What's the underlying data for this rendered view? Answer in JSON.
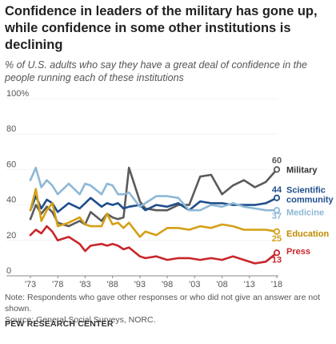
{
  "header": {
    "title": "Confidence in leaders of the military has gone up, while confidence in some other institutions is declining",
    "subtitle": "% of U.S. adults who say they have a great deal of confidence in the people running each of these institutions"
  },
  "footer": {
    "note": "Note: Respondents who gave other responses or who did not give an answer are not shown.",
    "source": "Source: General Social Surveys, NORC.",
    "brand": "PEW RESEARCH CENTER"
  },
  "chart_data": {
    "type": "line",
    "x_range": [
      1973,
      2018
    ],
    "ylim": [
      0,
      100
    ],
    "y_ticks": [
      {
        "value": 0,
        "label": "0"
      },
      {
        "value": 20,
        "label": "20"
      },
      {
        "value": 40,
        "label": "40"
      },
      {
        "value": 60,
        "label": "60"
      },
      {
        "value": 80,
        "label": "80"
      },
      {
        "value": 100,
        "label": "100%"
      }
    ],
    "x_ticks": [
      {
        "value": 1973,
        "label": "'73"
      },
      {
        "value": 1978,
        "label": "'78"
      },
      {
        "value": 1983,
        "label": "'83"
      },
      {
        "value": 1988,
        "label": "'88"
      },
      {
        "value": 1993,
        "label": "'93"
      },
      {
        "value": 1998,
        "label": "'98"
      },
      {
        "value": 2003,
        "label": "'03"
      },
      {
        "value": 2008,
        "label": "'08"
      },
      {
        "value": 2013,
        "label": "'13"
      },
      {
        "value": 2018,
        "label": "'18"
      }
    ],
    "grid": "horizontal",
    "series": [
      {
        "name": "Military",
        "color": "#5b5b5b",
        "end_label": "60",
        "x": [
          1973,
          1974,
          1975,
          1976,
          1977,
          1978,
          1980,
          1982,
          1983,
          1984,
          1986,
          1987,
          1988,
          1989,
          1990,
          1991,
          1993,
          1994,
          1996,
          1998,
          2000,
          2002,
          2004,
          2006,
          2008,
          2010,
          2012,
          2014,
          2016,
          2018
        ],
        "y": [
          32,
          40,
          35,
          39,
          36,
          30,
          28,
          31,
          29,
          36,
          31,
          35,
          33,
          32,
          33,
          61,
          42,
          38,
          37,
          37,
          40,
          40,
          56,
          57,
          46,
          51,
          54,
          50,
          53,
          60
        ]
      },
      {
        "name": "Scientific community",
        "color": "#1f4e8c",
        "end_label": "44",
        "x": [
          1973,
          1974,
          1975,
          1976,
          1977,
          1978,
          1980,
          1982,
          1983,
          1984,
          1986,
          1987,
          1988,
          1989,
          1990,
          1991,
          1993,
          1994,
          1996,
          1998,
          2000,
          2002,
          2004,
          2006,
          2008,
          2010,
          2012,
          2014,
          2016,
          2018
        ],
        "y": [
          37,
          45,
          38,
          43,
          41,
          36,
          41,
          38,
          41,
          44,
          39,
          41,
          40,
          41,
          38,
          39,
          40,
          37,
          40,
          39,
          41,
          37,
          42,
          41,
          41,
          40,
          40,
          40,
          41,
          44
        ]
      },
      {
        "name": "Medicine",
        "color": "#8eb8d6",
        "end_label": "37",
        "x": [
          1973,
          1974,
          1975,
          1976,
          1977,
          1978,
          1980,
          1982,
          1983,
          1984,
          1986,
          1987,
          1988,
          1989,
          1990,
          1991,
          1993,
          1994,
          1996,
          1998,
          2000,
          2002,
          2004,
          2006,
          2008,
          2010,
          2012,
          2014,
          2016,
          2018
        ],
        "y": [
          54,
          61,
          50,
          54,
          51,
          46,
          52,
          46,
          52,
          51,
          46,
          52,
          51,
          46,
          46,
          47,
          39,
          41,
          45,
          45,
          44,
          37,
          37,
          40,
          39,
          41,
          39,
          38,
          37,
          37
        ]
      },
      {
        "name": "Education",
        "color": "#d4a017",
        "end_label": "25",
        "x": [
          1973,
          1974,
          1975,
          1976,
          1977,
          1978,
          1980,
          1982,
          1983,
          1984,
          1986,
          1987,
          1988,
          1989,
          1990,
          1991,
          1993,
          1994,
          1996,
          1998,
          2000,
          2002,
          2004,
          2006,
          2008,
          2010,
          2012,
          2014,
          2016,
          2018
        ],
        "y": [
          37,
          49,
          31,
          37,
          41,
          28,
          30,
          33,
          29,
          28,
          28,
          35,
          29,
          30,
          27,
          30,
          22,
          25,
          23,
          27,
          27,
          26,
          28,
          27,
          29,
          28,
          26,
          26,
          26,
          25
        ]
      },
      {
        "name": "Press",
        "color": "#c9262c",
        "end_label": "13",
        "x": [
          1973,
          1974,
          1975,
          1976,
          1977,
          1978,
          1980,
          1982,
          1983,
          1984,
          1986,
          1987,
          1988,
          1989,
          1990,
          1991,
          1993,
          1994,
          1996,
          1998,
          2000,
          2002,
          2004,
          2006,
          2008,
          2010,
          2012,
          2014,
          2016,
          2018
        ],
        "y": [
          23,
          26,
          24,
          28,
          25,
          20,
          22,
          18,
          14,
          17,
          18,
          17,
          18,
          17,
          15,
          16,
          11,
          10,
          11,
          9,
          10,
          10,
          9,
          10,
          9,
          11,
          9,
          7,
          8,
          13
        ]
      }
    ],
    "labels": [
      {
        "name": "Military",
        "lines": [
          "Military"
        ],
        "color": "#333333"
      },
      {
        "name": "Scientific community",
        "lines": [
          "Scientific",
          "community"
        ],
        "color": "#1f4e8c"
      },
      {
        "name": "Medicine",
        "lines": [
          "Medicine"
        ],
        "color": "#8eb8d6"
      },
      {
        "name": "Education",
        "lines": [
          "Education"
        ],
        "color": "#c08a00"
      },
      {
        "name": "Press",
        "lines": [
          "Press"
        ],
        "color": "#c9262c"
      }
    ]
  }
}
